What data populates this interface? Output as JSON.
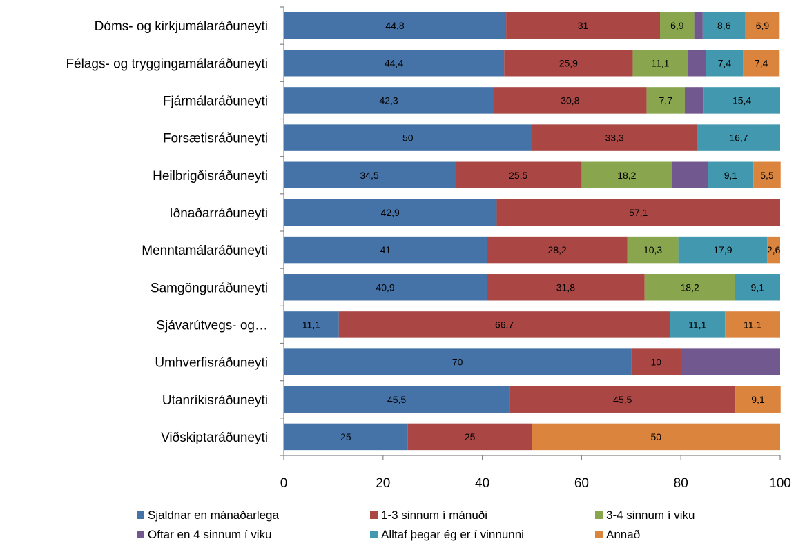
{
  "chart_data": {
    "type": "bar",
    "orientation": "horizontal",
    "stacked": true,
    "categories": [
      "Dóms- og kirkjumálaráðuneyti",
      "Félags- og tryggingamálaráðuneyti",
      "Fjármálaráðuneyti",
      "Forsætisráðuneyti",
      "Heilbrigðisráðuneyti",
      "Iðnaðarráðuneyti",
      "Menntamálaráðuneyti",
      "Samgönguráðuneyti",
      "Sjávarútvegs- og…",
      "Umhverfisráðuneyti",
      "Utanríkisráðuneyti",
      "Viðskiptaráðuneyti"
    ],
    "series": [
      {
        "name": "Sjaldnar en mánaðarlega",
        "color": "#4572A7",
        "values": [
          44.8,
          44.4,
          42.3,
          50,
          34.5,
          42.9,
          41,
          40.9,
          11.1,
          70,
          45.5,
          25
        ],
        "labels": [
          "44,8",
          "44,4",
          "42,3",
          "50",
          "34,5",
          "42,9",
          "41",
          "40,9",
          "11,1",
          "70",
          "45,5",
          "25"
        ]
      },
      {
        "name": "1-3 sinnum í mánuði",
        "color": "#AA4643",
        "values": [
          31,
          25.9,
          30.8,
          33.3,
          25.5,
          57.1,
          28.2,
          31.8,
          66.7,
          10,
          45.5,
          25
        ],
        "labels": [
          "31",
          "25,9",
          "30,8",
          "33,3",
          "25,5",
          "57,1",
          "28,2",
          "31,8",
          "66,7",
          "10",
          "45,5",
          "25"
        ]
      },
      {
        "name": "3-4 sinnum í viku",
        "color": "#89A54E",
        "values": [
          6.9,
          11.1,
          7.7,
          0,
          18.2,
          0,
          10.3,
          18.2,
          0,
          0,
          0,
          0
        ],
        "labels": [
          "6,9",
          "11,1",
          "7,7",
          "",
          "18,2",
          "",
          "10,3",
          "18,2",
          "",
          "",
          "",
          ""
        ]
      },
      {
        "name": "Oftar en 4 sinnum í viku",
        "color": "#71588F",
        "values": [
          1.7,
          3.7,
          3.8,
          0,
          7.3,
          0,
          0,
          0,
          0,
          20,
          0,
          0
        ],
        "labels": [
          "",
          "",
          "",
          "",
          "",
          "",
          "",
          "",
          "",
          "",
          "",
          ""
        ]
      },
      {
        "name": "Alltaf þegar ég er í vinnunni",
        "color": "#4198AF",
        "values": [
          8.6,
          7.4,
          15.4,
          16.7,
          9.1,
          0,
          17.9,
          9.1,
          11.1,
          0,
          0,
          0
        ],
        "labels": [
          "8,6",
          "7,4",
          "15,4",
          "16,7",
          "9,1",
          "",
          "17,9",
          "9,1",
          "11,1",
          "",
          "",
          ""
        ]
      },
      {
        "name": "Annað",
        "color": "#DB843D",
        "values": [
          6.9,
          7.4,
          0,
          0,
          5.5,
          0,
          2.6,
          0,
          11.1,
          0,
          9.1,
          50
        ],
        "labels": [
          "6,9",
          "7,4",
          "",
          "",
          "5,5",
          "",
          "2,6",
          "",
          "11,1",
          "",
          "9,1",
          "50"
        ]
      }
    ],
    "xlim": [
      0,
      100
    ],
    "xticks": [
      0,
      20,
      40,
      60,
      80,
      100
    ],
    "xtick_labels": [
      "0",
      "20",
      "40",
      "60",
      "80",
      "100"
    ],
    "title": "",
    "xlabel": "",
    "ylabel": "",
    "grid": false,
    "legend_position": "bottom"
  }
}
